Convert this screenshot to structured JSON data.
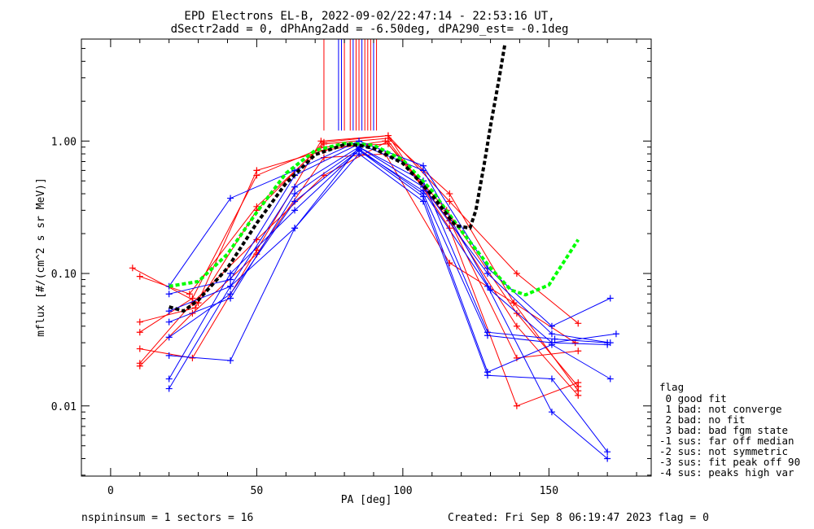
{
  "header": {
    "title_line1": "EPD Electrons EL-B, 2022-09-02/22:47:14 - 22:53:16 UT,",
    "title_line2": "dSectr2add = 0, dPhAng2add = -6.50deg, dPA290_est=  -0.1deg"
  },
  "footer": {
    "left": "nspininsum =  1  sectors = 16",
    "right": "Created: Fri Sep  8 06:19:47 2023   flag = 0"
  },
  "flag_legend": {
    "title": "flag",
    "items": [
      " 0 good fit",
      " 1 bad: not converge",
      " 2 bad: no fit",
      " 3 bad: bad fgm state",
      "-1 sus: far off median",
      "-2 sus: not symmetric",
      "-3 sus: fit peak off 90",
      "-4 sus: peaks high var"
    ]
  },
  "colors": {
    "red": "#ff0000",
    "blue": "#0000ff",
    "green": "#00ff00",
    "black": "#000000"
  },
  "chart_data": {
    "type": "line",
    "xlabel": "PA [deg]",
    "ylabel": "mflux [#/(cm^2 s sr MeV)]",
    "xlim": [
      -10,
      185
    ],
    "ylim_log10": [
      -2.53,
      0.77
    ],
    "y_scale": "log",
    "x_ticks": [
      0,
      50,
      100,
      150
    ],
    "x_tick_labels": [
      "0",
      "50",
      "100",
      "150"
    ],
    "y_ticks": [
      0.01,
      0.1,
      1.0
    ],
    "y_tick_labels": [
      "0.01",
      "0.10",
      "1.00"
    ],
    "peak_markers": {
      "red_x": [
        73,
        80,
        82,
        84,
        85,
        87,
        88,
        89,
        91
      ],
      "blue_x": [
        78,
        79,
        83,
        86,
        90
      ],
      "y_bottom": 1.2
    },
    "series": [
      {
        "color": "red",
        "x": [
          7.5,
          30,
          50,
          73,
          95,
          116,
          139,
          160
        ],
        "y": [
          0.11,
          0.06,
          0.3,
          0.98,
          1.1,
          0.35,
          0.1,
          0.042
        ]
      },
      {
        "color": "red",
        "x": [
          10,
          27,
          50,
          73,
          95,
          116,
          138,
          159
        ],
        "y": [
          0.095,
          0.07,
          0.32,
          0.95,
          1.05,
          0.4,
          0.06,
          0.03
        ]
      },
      {
        "color": "red",
        "x": [
          10,
          29,
          50,
          73,
          94,
          115,
          139,
          160
        ],
        "y": [
          0.043,
          0.055,
          0.6,
          0.85,
          1.0,
          0.3,
          0.05,
          0.014
        ]
      },
      {
        "color": "red",
        "x": [
          10,
          28,
          50,
          73,
          95,
          116,
          139,
          160
        ],
        "y": [
          0.036,
          0.065,
          0.55,
          0.9,
          0.95,
          0.25,
          0.023,
          0.026
        ]
      },
      {
        "color": "red",
        "x": [
          10,
          28,
          50,
          72,
          95,
          116,
          139,
          160
        ],
        "y": [
          0.027,
          0.023,
          0.15,
          1.0,
          1.1,
          0.22,
          0.01,
          0.015
        ]
      },
      {
        "color": "red",
        "x": [
          10,
          28,
          50,
          73,
          94,
          116,
          138,
          160
        ],
        "y": [
          0.02,
          0.05,
          0.14,
          0.75,
          0.8,
          0.12,
          0.06,
          0.013
        ]
      },
      {
        "color": "red",
        "x": [
          10,
          28,
          50,
          73,
          95,
          116,
          139,
          160
        ],
        "y": [
          0.021,
          0.06,
          0.18,
          0.55,
          1.0,
          0.25,
          0.04,
          0.012
        ]
      },
      {
        "color": "blue",
        "x": [
          20,
          41,
          63,
          85,
          107,
          129,
          151,
          171
        ],
        "y": [
          0.08,
          0.37,
          0.6,
          1.0,
          0.65,
          0.11,
          0.04,
          0.065
        ]
      },
      {
        "color": "blue",
        "x": [
          20,
          41,
          63,
          85,
          107,
          130,
          151,
          173
        ],
        "y": [
          0.07,
          0.09,
          0.55,
          0.95,
          0.6,
          0.075,
          0.03,
          0.035
        ]
      },
      {
        "color": "blue",
        "x": [
          20,
          41,
          63,
          85,
          107,
          129,
          152,
          170
        ],
        "y": [
          0.052,
          0.08,
          0.45,
          0.9,
          0.5,
          0.036,
          0.032,
          0.03
        ]
      },
      {
        "color": "blue",
        "x": [
          20,
          41,
          63,
          85,
          107,
          129,
          151,
          170
        ],
        "y": [
          0.043,
          0.065,
          0.4,
          0.87,
          0.4,
          0.034,
          0.03,
          0.029
        ]
      },
      {
        "color": "blue",
        "x": [
          20,
          41,
          63,
          85,
          107,
          129,
          151,
          171
        ],
        "y": [
          0.033,
          0.07,
          0.35,
          0.85,
          0.38,
          0.018,
          0.029,
          0.016
        ]
      },
      {
        "color": "blue",
        "x": [
          20,
          41,
          63,
          85,
          107,
          129,
          151,
          170
        ],
        "y": [
          0.024,
          0.022,
          0.22,
          0.8,
          0.35,
          0.017,
          0.016,
          0.0045
        ]
      },
      {
        "color": "blue",
        "x": [
          20,
          41,
          63,
          85,
          107,
          129,
          151,
          170
        ],
        "y": [
          0.016,
          0.1,
          0.3,
          0.85,
          0.42,
          0.08,
          0.009,
          0.004
        ]
      },
      {
        "color": "blue",
        "x": [
          20,
          41,
          63,
          85,
          107,
          129,
          151,
          171
        ],
        "y": [
          0.0135,
          0.08,
          0.22,
          0.9,
          0.45,
          0.1,
          0.035,
          0.03
        ]
      }
    ],
    "fit_curves": [
      {
        "color": "green",
        "style": "dashed",
        "x": [
          20,
          30,
          40,
          50,
          60,
          70,
          80,
          85,
          90,
          100,
          110,
          120,
          130,
          137,
          142,
          150,
          160
        ],
        "y": [
          0.08,
          0.087,
          0.14,
          0.29,
          0.57,
          0.85,
          0.96,
          0.95,
          0.93,
          0.72,
          0.42,
          0.21,
          0.11,
          0.075,
          0.069,
          0.082,
          0.18
        ]
      },
      {
        "color": "black",
        "style": "dashed",
        "x": [
          20,
          25,
          30,
          40,
          50,
          60,
          70,
          80,
          85,
          90,
          100,
          110,
          118,
          123,
          125,
          128,
          130,
          133,
          135
        ],
        "y": [
          0.056,
          0.052,
          0.063,
          0.11,
          0.24,
          0.48,
          0.79,
          0.94,
          0.93,
          0.88,
          0.68,
          0.39,
          0.23,
          0.22,
          0.3,
          0.7,
          1.3,
          3.0,
          5.5
        ]
      }
    ]
  }
}
